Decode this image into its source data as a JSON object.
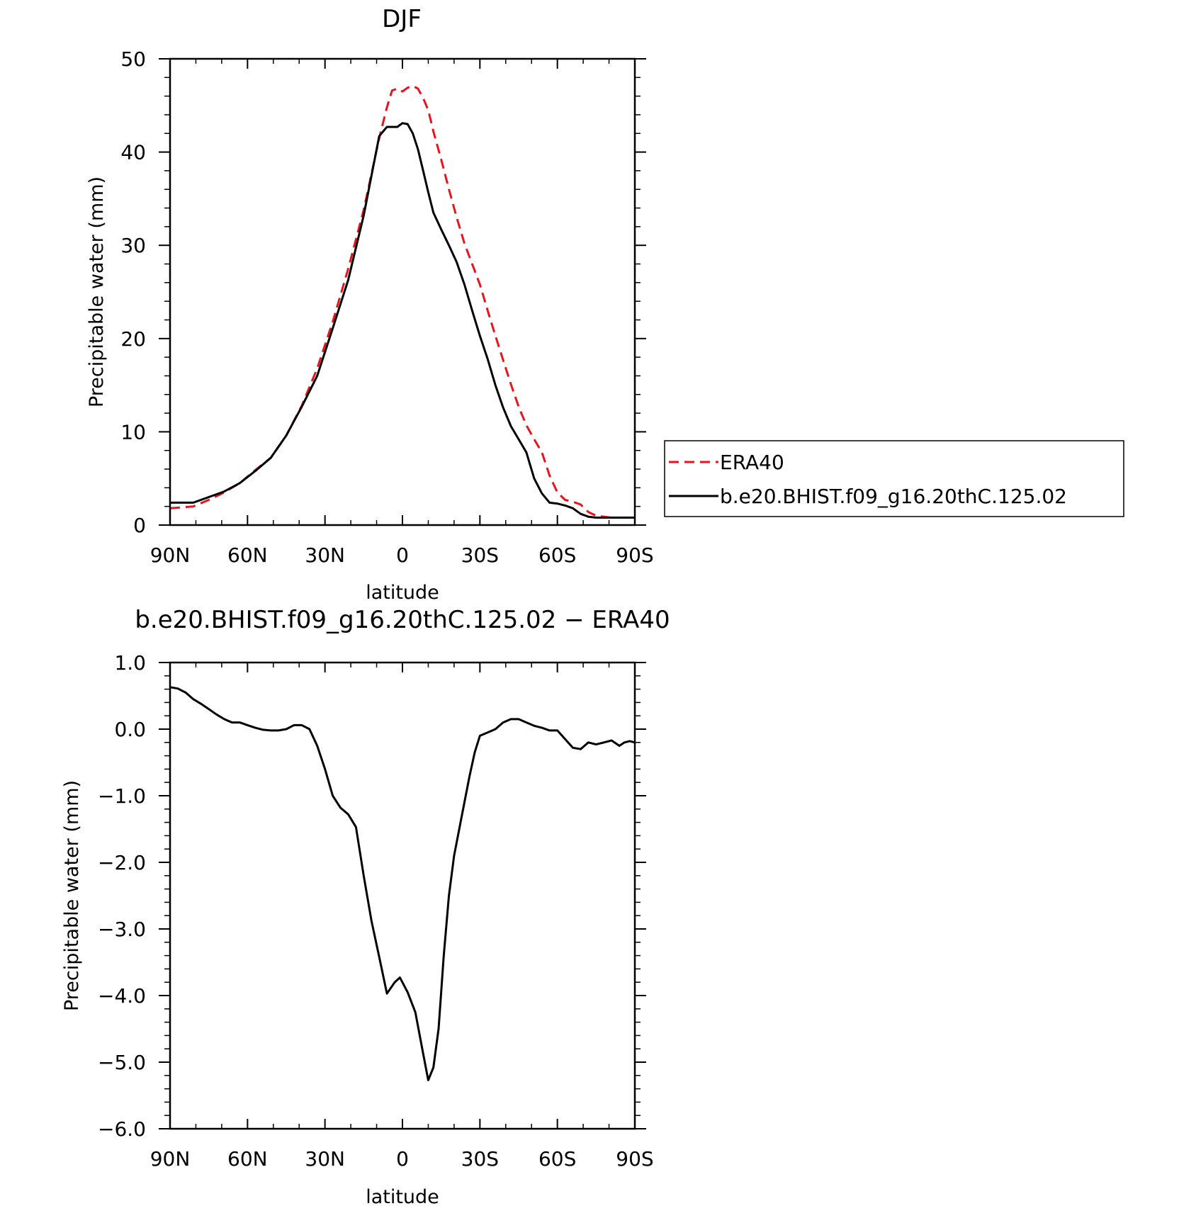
{
  "chart_data": [
    {
      "type": "line",
      "title": "DJF",
      "xlabel": "latitude",
      "ylabel": "Precipitable water (mm)",
      "xlim": [
        -90,
        90
      ],
      "ylim": [
        0,
        50
      ],
      "x_tick_values": [
        -90,
        -60,
        -30,
        0,
        30,
        60,
        90
      ],
      "x_tick_labels": [
        "90N",
        "60N",
        "30N",
        "0",
        "30S",
        "60S",
        "90S"
      ],
      "y_tick_values": [
        0,
        10,
        20,
        30,
        40,
        50
      ],
      "y_tick_labels": [
        "0",
        "10",
        "20",
        "30",
        "40",
        "50"
      ],
      "grid": false,
      "legend": "right",
      "x_note": "x values are latitude in degrees, negative = north (drawn left), positive = south (drawn right)",
      "series": [
        {
          "name": "ERA40",
          "color": "#e8141b",
          "dash": true,
          "x": [
            -90,
            -81,
            -75,
            -69,
            -63,
            -57,
            -51,
            -45,
            -39,
            -33,
            -27,
            -21,
            -15,
            -9,
            -6,
            -4,
            -2,
            0,
            2,
            4,
            6,
            8,
            10,
            12,
            15,
            18,
            21,
            24,
            27,
            30,
            33,
            36,
            39,
            42,
            45,
            48,
            51,
            54,
            57,
            60,
            63,
            66,
            69,
            72,
            75,
            78,
            81,
            84,
            87,
            90
          ],
          "y": [
            1.8,
            2.0,
            2.7,
            3.5,
            4.5,
            5.9,
            7.2,
            9.6,
            12.8,
            16.8,
            21.8,
            27.5,
            33.8,
            41.5,
            44.8,
            46.6,
            46.8,
            46.5,
            46.9,
            47.1,
            46.8,
            45.8,
            44.5,
            42.2,
            39.2,
            36.0,
            33.0,
            30.2,
            28.0,
            25.8,
            23.0,
            20.3,
            17.7,
            15.1,
            12.7,
            10.7,
            9.2,
            7.8,
            5.3,
            3.5,
            2.7,
            2.5,
            2.2,
            1.4,
            1.0,
            0.9,
            0.8,
            0.8,
            0.8,
            0.8
          ]
        },
        {
          "name": "b.e20.BHIST.f09_g16.20thC.125.02",
          "color": "#000000",
          "dash": false,
          "x": [
            -90,
            -81,
            -75,
            -69,
            -63,
            -57,
            -51,
            -45,
            -39,
            -33,
            -27,
            -21,
            -15,
            -9,
            -6,
            -4,
            -2,
            0,
            2,
            4,
            6,
            8,
            10,
            12,
            15,
            18,
            21,
            24,
            27,
            30,
            33,
            36,
            39,
            42,
            45,
            48,
            51,
            54,
            57,
            60,
            63,
            66,
            69,
            72,
            75,
            78,
            81,
            84,
            87,
            90
          ],
          "y": [
            2.4,
            2.4,
            3.0,
            3.6,
            4.5,
            5.8,
            7.2,
            9.6,
            12.7,
            16.0,
            21.1,
            26.3,
            33.2,
            41.7,
            42.7,
            42.7,
            42.7,
            43.1,
            43.0,
            42.0,
            40.3,
            38.0,
            35.7,
            33.5,
            31.7,
            30.0,
            28.2,
            25.8,
            23.0,
            20.3,
            17.8,
            15.0,
            12.6,
            10.6,
            9.2,
            7.8,
            5.0,
            3.4,
            2.4,
            2.3,
            2.1,
            1.8,
            1.2,
            0.9,
            0.8,
            0.8,
            0.8,
            0.8,
            0.8,
            0.8
          ]
        }
      ]
    },
    {
      "type": "line",
      "title": "b.e20.BHIST.f09_g16.20thC.125.02 − ERA40",
      "xlabel": "latitude",
      "ylabel": "Precipitable water (mm)",
      "xlim": [
        -90,
        90
      ],
      "ylim": [
        -6.0,
        1.0
      ],
      "x_tick_values": [
        -90,
        -60,
        -30,
        0,
        30,
        60,
        90
      ],
      "x_tick_labels": [
        "90N",
        "60N",
        "30N",
        "0",
        "30S",
        "60S",
        "90S"
      ],
      "y_tick_values": [
        1.0,
        0.0,
        -1.0,
        -2.0,
        -3.0,
        -4.0,
        -5.0,
        -6.0
      ],
      "y_tick_labels": [
        "1.0",
        "0.0",
        "−1.0",
        "−2.0",
        "−3.0",
        "−4.0",
        "−5.0",
        "−6.0"
      ],
      "grid": false,
      "x_note": "x values are latitude in degrees, negative = north (drawn left), positive = south (drawn right)",
      "series": [
        {
          "color": "#000000",
          "dash": false,
          "x": [
            -90,
            -87,
            -84,
            -81,
            -78,
            -75,
            -72,
            -69,
            -66,
            -63,
            -60,
            -57,
            -54,
            -51,
            -48,
            -45,
            -42,
            -39,
            -36,
            -33,
            -30,
            -27,
            -24,
            -21,
            -18,
            -15,
            -12,
            -9,
            -6,
            -3,
            -1,
            2,
            5,
            8,
            10,
            12,
            14,
            16,
            18,
            20,
            23,
            26,
            28,
            30,
            33,
            36,
            39,
            42,
            45,
            48,
            51,
            54,
            57,
            60,
            63,
            66,
            69,
            72,
            75,
            78,
            81,
            84,
            86,
            88,
            90
          ],
          "y": [
            0.63,
            0.61,
            0.55,
            0.45,
            0.38,
            0.3,
            0.22,
            0.15,
            0.1,
            0.1,
            0.06,
            0.02,
            -0.01,
            -0.02,
            -0.02,
            0.0,
            0.06,
            0.06,
            0.0,
            -0.25,
            -0.6,
            -1.0,
            -1.18,
            -1.28,
            -1.47,
            -2.2,
            -2.88,
            -3.42,
            -3.97,
            -3.8,
            -3.73,
            -3.95,
            -4.25,
            -4.87,
            -5.27,
            -5.08,
            -4.5,
            -3.4,
            -2.5,
            -1.9,
            -1.3,
            -0.7,
            -0.35,
            -0.1,
            -0.05,
            0.0,
            0.1,
            0.15,
            0.15,
            0.1,
            0.05,
            0.02,
            -0.02,
            -0.02,
            -0.15,
            -0.28,
            -0.3,
            -0.2,
            -0.23,
            -0.2,
            -0.17,
            -0.25,
            -0.2,
            -0.18,
            -0.2
          ]
        }
      ]
    }
  ]
}
